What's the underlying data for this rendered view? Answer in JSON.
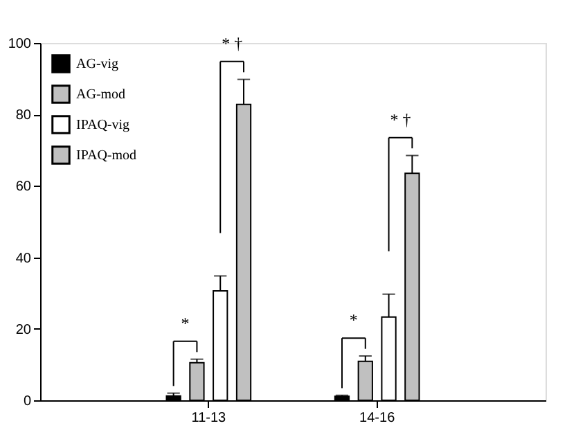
{
  "chart_data": {
    "type": "bar",
    "categories": [
      "11-13",
      "14-16"
    ],
    "series": [
      {
        "name": "AG-vig",
        "color": "#000000",
        "values": [
          1.2,
          1.1
        ],
        "errors": [
          0.8,
          0.3
        ]
      },
      {
        "name": "AG-mod",
        "color": "#c0c0c0",
        "values": [
          10.5,
          10.9
        ],
        "errors": [
          1,
          1.5
        ]
      },
      {
        "name": "IPAQ-vig",
        "color": "#ffffff",
        "values": [
          30.6,
          23.3
        ],
        "errors": [
          4.2,
          6.4
        ]
      },
      {
        "name": "IPAQ-mod",
        "color": "#c0c0c0",
        "values": [
          82.8,
          63.5
        ],
        "errors": [
          7,
          5
        ]
      }
    ],
    "ylim": [
      0,
      100
    ],
    "yticks": [
      0,
      20,
      40,
      60,
      80,
      100
    ],
    "grid": false,
    "legend": "top left",
    "annotations": [
      "*",
      "* †",
      "*",
      "* †"
    ]
  }
}
